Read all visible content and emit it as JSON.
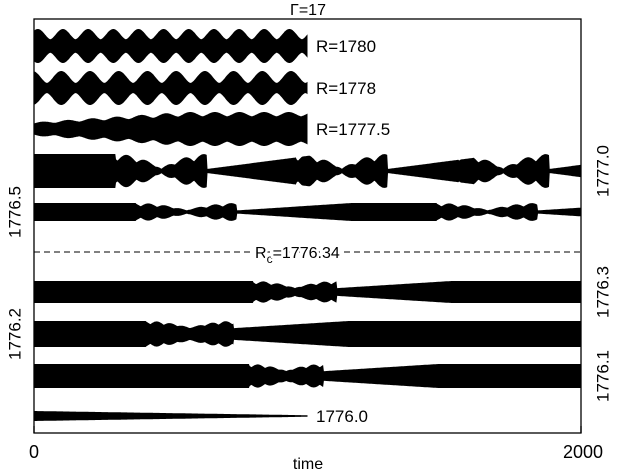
{
  "chart_data": {
    "type": "area",
    "title": "Γ=17",
    "xlabel": "time",
    "ylabel": "",
    "xlim": [
      0,
      2000
    ],
    "x_ticks": [
      "0",
      "2000"
    ],
    "grid": false,
    "legend": "none",
    "threshold": {
      "label_main": "R",
      "label_sub": "c",
      "label_rest": "=1776.34",
      "value": 1776.34,
      "style": "dashed"
    },
    "series": [
      {
        "name": "R=1780",
        "label": "R=1780",
        "label_side": "inline",
        "t_end": 1000,
        "mode": "beat",
        "period": 92,
        "phase": 0.35,
        "low": 0.4,
        "high": 1.0
      },
      {
        "name": "R=1778",
        "label": "R=1778",
        "label_side": "inline",
        "t_end": 1000,
        "mode": "beat",
        "period": 105,
        "phase": 0.55,
        "low": 0.3,
        "high": 1.0
      },
      {
        "name": "R=1777.5",
        "label": "R=1777.5",
        "label_side": "inline",
        "t_end": 1000,
        "mode": "swell",
        "period": 90,
        "phase": 0.15,
        "low": 0.4,
        "high": 1.0
      },
      {
        "name": "1777.0",
        "label": "1777.0",
        "label_side": "right",
        "t_end": 2000,
        "mode": "burst",
        "bursts": [
          340,
          1000,
          1590
        ],
        "burst_width": 210,
        "period": 70,
        "low": 0.12,
        "high": 1.0
      },
      {
        "name": "1776.5",
        "label": "1776.5",
        "label_side": "left",
        "t_end": 2000,
        "mode": "burst",
        "bursts": [
          420,
          1520
        ],
        "burst_width": 230,
        "period": 60,
        "low": 0.18,
        "high": 1.0
      },
      {
        "name": "1776.3",
        "label": "1776.3",
        "label_side": "right",
        "t_end": 2000,
        "mode": "burst",
        "bursts": [
          840
        ],
        "burst_width": 190,
        "period": 55,
        "low": 0.35,
        "high": 1.0
      },
      {
        "name": "1776.2",
        "label": "1776.2",
        "label_side": "left",
        "t_end": 2000,
        "mode": "burst",
        "bursts": [
          450
        ],
        "burst_width": 200,
        "period": 50,
        "low": 0.45,
        "high": 1.0
      },
      {
        "name": "1776.1",
        "label": "1776.1",
        "label_side": "right",
        "t_end": 2000,
        "mode": "burst",
        "bursts": [
          820
        ],
        "burst_width": 170,
        "period": 50,
        "low": 0.4,
        "high": 1.0
      },
      {
        "name": "1776.0",
        "label": "1776.0",
        "label_side": "inline",
        "t_end": 1000,
        "mode": "taper",
        "low": 0.15,
        "high": 1.0
      }
    ]
  }
}
